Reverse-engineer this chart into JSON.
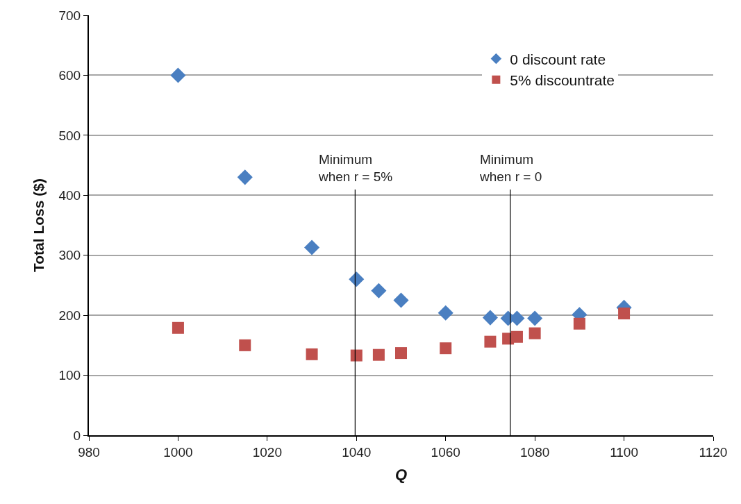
{
  "chart_data": {
    "type": "scatter",
    "xlabel": "Q",
    "ylabel": "Total Loss ($)",
    "x": [
      1000,
      1015,
      1030,
      1040,
      1045,
      1050,
      1060,
      1070,
      1074,
      1076,
      1080,
      1090,
      1100
    ],
    "series": [
      {
        "name": "0 discount rate",
        "color": "#4a7fc1",
        "marker": "diamond",
        "values": [
          600,
          430,
          313,
          260,
          241,
          225,
          204,
          196,
          195,
          195,
          195,
          201,
          213
        ]
      },
      {
        "name": "5% discountrate",
        "color": "#c0504d",
        "marker": "square",
        "values": [
          179,
          150,
          135,
          133,
          134,
          137,
          145,
          156,
          161,
          164,
          170,
          186,
          203
        ]
      }
    ],
    "ref_lines": [
      {
        "axis": "x",
        "value": 1039.7,
        "color": "#000000"
      },
      {
        "axis": "x",
        "value": 1074.5,
        "color": "#000000"
      }
    ],
    "annotations": [
      "Minimum\nwhen r = 5%",
      "Minimum\nwhen r = 0"
    ],
    "xlim": [
      980,
      1120
    ],
    "xticks": [
      980,
      1000,
      1020,
      1040,
      1060,
      1080,
      1100,
      1120
    ],
    "ylim": [
      0,
      700
    ],
    "yticks": [
      0,
      100,
      200,
      300,
      400,
      500,
      600,
      700
    ],
    "grid": "y",
    "legend": "top right"
  }
}
